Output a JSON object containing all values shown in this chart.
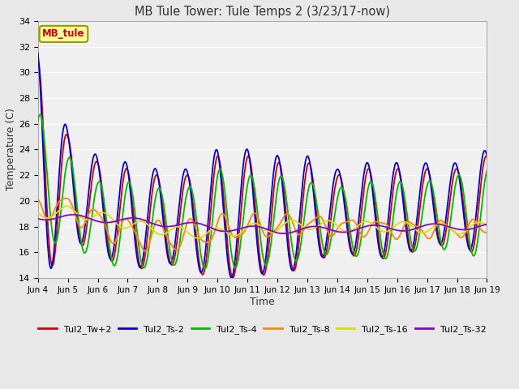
{
  "title": "MB Tule Tower: Tule Temps 2 (3/23/17-now)",
  "xlabel": "Time",
  "ylabel": "Temperature (C)",
  "ylim": [
    14,
    34
  ],
  "xlim": [
    0,
    15
  ],
  "yticks": [
    14,
    16,
    18,
    20,
    22,
    24,
    26,
    28,
    30,
    32,
    34
  ],
  "xtick_labels": [
    "Jun 4",
    "Jun 5",
    "Jun 6",
    "Jun 7",
    "Jun 8",
    "Jun 9",
    "Jun 10",
    "Jun 11",
    "Jun 12",
    "Jun 13",
    "Jun 14",
    "Jun 15",
    "Jun 16",
    "Jun 17",
    "Jun 18",
    "Jun 19"
  ],
  "legend_label": "MB_tule",
  "legend_box_color": "#ffff99",
  "legend_box_edge": "#999900",
  "series_colors": {
    "Tul2_Tw+2": "#cc0000",
    "Tul2_Ts-2": "#0000cc",
    "Tul2_Ts-4": "#00bb00",
    "Tul2_Ts-8": "#ff8800",
    "Tul2_Ts-16": "#dddd00",
    "Tul2_Ts-32": "#8800cc"
  },
  "background_color": "#e8e8e8",
  "plot_background": "#f0f0f0",
  "grid_color": "#ffffff"
}
